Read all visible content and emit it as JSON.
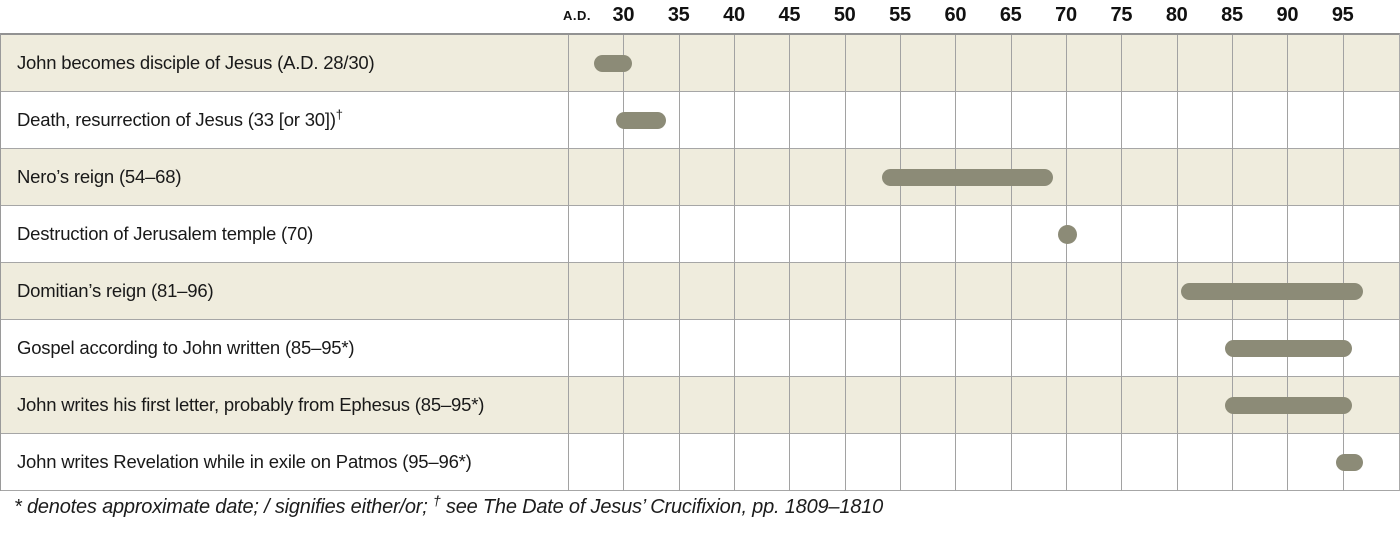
{
  "chart_data": {
    "type": "bar",
    "subtype": "horizontal-timeline-gantt",
    "title": "",
    "era_label": "A.D.",
    "axis_ticks": [
      30,
      35,
      40,
      45,
      50,
      55,
      60,
      65,
      70,
      75,
      80,
      85,
      90,
      95
    ],
    "xlim": [
      25,
      100
    ],
    "grid": "on",
    "events": [
      {
        "label": "John becomes disciple of Jesus (A.D. 28/30)",
        "sup": "",
        "start": 28,
        "end": 30,
        "shape": "bar"
      },
      {
        "label": "Death, resurrection of Jesus (33 [or 30])",
        "sup": "†",
        "start": 30,
        "end": 33,
        "shape": "bar"
      },
      {
        "label": "Nero’s reign (54–68)",
        "sup": "",
        "start": 54,
        "end": 68,
        "shape": "bar"
      },
      {
        "label": "Destruction of Jerusalem temple (70)",
        "sup": "",
        "start": 70,
        "end": 70,
        "shape": "dot"
      },
      {
        "label": "Domitian’s reign (81–96)",
        "sup": "",
        "start": 81,
        "end": 96,
        "shape": "bar"
      },
      {
        "label": "Gospel according to John written (85–95*)",
        "sup": "",
        "start": 85,
        "end": 95,
        "shape": "bar"
      },
      {
        "label": "John writes his first letter, probably from Ephesus (85–95*)",
        "sup": "",
        "start": 85,
        "end": 95,
        "shape": "bar"
      },
      {
        "label": "John writes Revelation while in exile on Patmos (95–96*)",
        "sup": "",
        "start": 95,
        "end": 96,
        "shape": "bar"
      }
    ],
    "footnote": {
      "pre": "* denotes approximate date; / signifies either/or; ",
      "dagger": "†",
      "post": " see The Date of Jesus’ Crucifixion, pp. 1809–1810"
    }
  },
  "colors": {
    "bar": "#8c8b77",
    "dot": "#8c8b77",
    "row_alt_background": "#efecdd",
    "row_background": "#ffffff",
    "gridline": "#a2a2a2",
    "text": "#191919"
  }
}
